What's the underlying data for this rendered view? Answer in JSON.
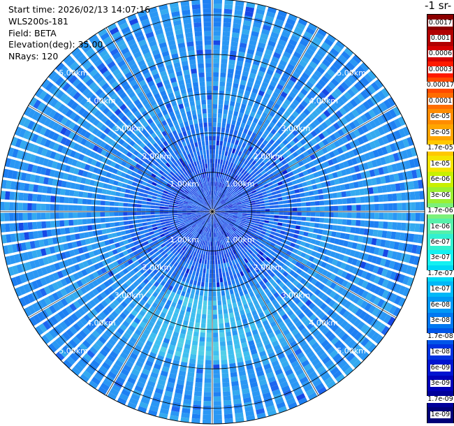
{
  "header": {
    "start_time": "Start time: 2026/02/13 14:07:16",
    "instrument": "WLS200s-181",
    "field": "Field: BETA",
    "elevation": "Elevation(deg): 35.00",
    "nrays": "NRays: 120"
  },
  "colorbar": {
    "units_label": "-1 sr-",
    "labels": [
      "0.0017",
      "0.001",
      "0.0006",
      "0.0003",
      "0.00017",
      "0.0001",
      "6e-05",
      "3e-05",
      "1.7e-05",
      "1e-05",
      "6e-06",
      "3e-06",
      "1.7e-06",
      "1e-06",
      "6e-07",
      "3e-07",
      "1.7e-07",
      "1e-07",
      "6e-08",
      "3e-08",
      "1.7e-08",
      "1e-08",
      "6e-09",
      "3e-09",
      "1.7e-09",
      "1e-09"
    ],
    "colors": [
      "#8b0000",
      "#b00000",
      "#d60000",
      "#ff1a00",
      "#ff4a00",
      "#ff6d00",
      "#ff8c00",
      "#ffa500",
      "#ffc800",
      "#f5e400",
      "#c8f000",
      "#9bf032",
      "#7cf07a",
      "#55f0aa",
      "#32f0d0",
      "#14f0f0",
      "#00d8f5",
      "#00b8f8",
      "#0098f5",
      "#0078f0",
      "#0055e8",
      "#0032e0",
      "#0014d0",
      "#0000b8",
      "#00009a",
      "#000078"
    ]
  },
  "chart_data": {
    "type": "heatmap",
    "projection": "polar PPI",
    "field": "BETA",
    "elevation_deg": 35.0,
    "nrays": 120,
    "range_rings_km": [
      1,
      2,
      3,
      4,
      5
    ],
    "ring_labels": [
      "1.00km",
      "2.00km",
      "3.00km",
      "4.00km",
      "5.00km"
    ],
    "max_range_km": 5.4,
    "scale": "log",
    "value_range": [
      1e-09,
      0.0017
    ],
    "typical_value": 6e-08,
    "notes_visible": [
      "enhanced backscatter (~1.7e-07) in south sector between 2 and 4 km"
    ]
  }
}
